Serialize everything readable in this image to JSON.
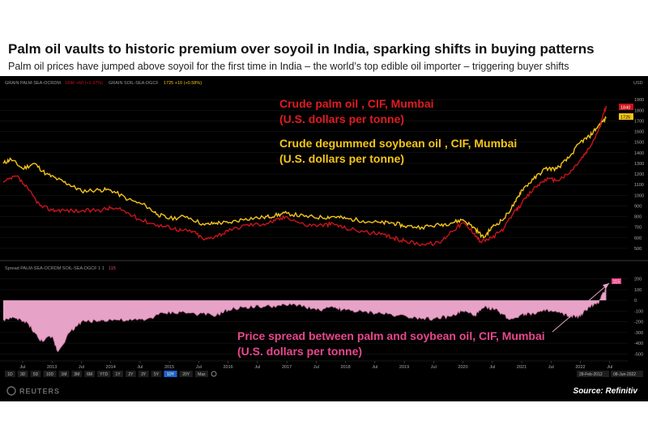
{
  "headline": "Palm oil vaults to historic premium over soyoil in India, sparking shifts in buying patterns",
  "subheadline": "Palm oil prices have jumped above soyoil for the first time in India – the world’s top edible oil importer – triggering buyer shifts",
  "panel_header": {
    "palm_ric": "GRAIN PALM-SEA-OCRDM",
    "palm_change": "1840 +60 (+1.37%)",
    "soy_ric": "GRAIN SOIL-SEA-DGCF",
    "soy_change": "1725 +10 (+0.58%)",
    "currency": "USD",
    "spread_ric": "Spread PALM-SEA-OCRDM SOIL-SEA-DGCF 1 1",
    "spread_value": "115"
  },
  "range_buttons": [
    "1D",
    "3D",
    "5D",
    "10D",
    "1M",
    "3M",
    "6M",
    "YTD",
    "1Y",
    "2Y",
    "3Y",
    "5Y",
    "10Y",
    "20Y",
    "Max"
  ],
  "active_range": "10Y",
  "date_range": {
    "start": "28-Feb-2012",
    "end": "08-Jun-2022"
  },
  "reuters_logo": "REUTERS",
  "source": "Source: Refinitiv",
  "colors": {
    "palm": "#c8141c",
    "soy": "#f5c518",
    "spread_fill": "#e7a3c7",
    "spread_text": "#e8478e",
    "background": "#000000"
  },
  "chart_data": [
    {
      "type": "line",
      "series": [
        {
          "name": "Crude palm oil , CIF, Mumbai",
          "x": [
            2012.17,
            2012.4,
            2012.6,
            2012.8,
            2013.0,
            2013.2,
            2013.5,
            2013.8,
            2014.0,
            2014.2,
            2014.5,
            2014.8,
            2015.0,
            2015.2,
            2015.4,
            2015.6,
            2015.8,
            2016.0,
            2016.3,
            2016.6,
            2016.8,
            2017.0,
            2017.3,
            2017.6,
            2017.8,
            2018.0,
            2018.3,
            2018.6,
            2018.8,
            2019.0,
            2019.3,
            2019.6,
            2019.8,
            2020.0,
            2020.2,
            2020.3,
            2020.5,
            2020.7,
            2020.9,
            2021.0,
            2021.2,
            2021.4,
            2021.6,
            2021.8,
            2022.0,
            2022.15,
            2022.3,
            2022.44
          ],
          "values": [
            1120,
            1180,
            1050,
            900,
            860,
            860,
            850,
            860,
            880,
            860,
            770,
            720,
            700,
            670,
            660,
            580,
            620,
            660,
            720,
            730,
            760,
            800,
            720,
            720,
            730,
            690,
            660,
            630,
            600,
            570,
            540,
            550,
            660,
            740,
            640,
            560,
            600,
            690,
            860,
            920,
            1060,
            1150,
            1140,
            1200,
            1330,
            1440,
            1600,
            1840
          ]
        },
        {
          "name": "Crude degummed soybean oil , CIF, Mumbai",
          "x": [
            2012.17,
            2012.3,
            2012.5,
            2012.7,
            2012.9,
            2013.1,
            2013.3,
            2013.5,
            2013.8,
            2014.0,
            2014.3,
            2014.6,
            2014.8,
            2015.0,
            2015.3,
            2015.6,
            2015.8,
            2016.0,
            2016.3,
            2016.6,
            2016.8,
            2017.0,
            2017.3,
            2017.6,
            2017.8,
            2018.0,
            2018.3,
            2018.6,
            2018.8,
            2019.0,
            2019.3,
            2019.6,
            2019.8,
            2020.0,
            2020.2,
            2020.35,
            2020.5,
            2020.7,
            2020.9,
            2021.0,
            2021.2,
            2021.4,
            2021.6,
            2021.8,
            2022.0,
            2022.15,
            2022.3,
            2022.44
          ],
          "values": [
            1300,
            1340,
            1250,
            1300,
            1200,
            1150,
            1100,
            1040,
            1050,
            1050,
            960,
            900,
            820,
            780,
            800,
            720,
            740,
            740,
            780,
            790,
            810,
            830,
            800,
            790,
            800,
            780,
            760,
            740,
            740,
            710,
            700,
            720,
            740,
            770,
            690,
            600,
            700,
            780,
            940,
            1050,
            1150,
            1250,
            1250,
            1350,
            1500,
            1550,
            1650,
            1725
          ]
        }
      ],
      "ylim": [
        400,
        2000
      ],
      "y_ticks": [
        500,
        600,
        700,
        800,
        900,
        1000,
        1100,
        1200,
        1300,
        1400,
        1500,
        1600,
        1700,
        1800,
        1900
      ],
      "x_ticks": [
        {
          "label": "Jul",
          "x": 2012.5
        },
        {
          "label": "2013",
          "x": 2013.0
        },
        {
          "label": "Jul",
          "x": 2013.5
        },
        {
          "label": "2014",
          "x": 2014.0
        },
        {
          "label": "Jul",
          "x": 2014.5
        },
        {
          "label": "2015",
          "x": 2015.0
        },
        {
          "label": "Jul",
          "x": 2015.5
        },
        {
          "label": "2016",
          "x": 2016.0
        },
        {
          "label": "Jul",
          "x": 2016.5
        },
        {
          "label": "2017",
          "x": 2017.0
        },
        {
          "label": "Jul",
          "x": 2017.5
        },
        {
          "label": "2018",
          "x": 2018.0
        },
        {
          "label": "Jul",
          "x": 2018.5
        },
        {
          "label": "2019",
          "x": 2019.0
        },
        {
          "label": "Jul",
          "x": 2019.5
        },
        {
          "label": "2020",
          "x": 2020.0
        },
        {
          "label": "Jul",
          "x": 2020.5
        },
        {
          "label": "2021",
          "x": 2021.0
        },
        {
          "label": "Jul",
          "x": 2021.5
        },
        {
          "label": "2022",
          "x": 2022.0
        },
        {
          "label": "Jul",
          "x": 2022.5
        }
      ],
      "xlim": [
        2012.17,
        2022.6
      ],
      "palm_annotation": [
        "Crude palm oil , CIF, Mumbai",
        "(U.S. dollars per tonne)"
      ],
      "soy_annotation": [
        "Crude degummed soybean oil , CIF, Mumbai",
        "(U.S. dollars per tonne)"
      ]
    },
    {
      "type": "area",
      "series": [
        {
          "name": "Spread PALM-SEA-OCRDM SOIL-SEA-DGCF 1 1",
          "x": [
            2012.17,
            2012.4,
            2012.6,
            2012.8,
            2013.0,
            2013.1,
            2013.3,
            2013.5,
            2013.8,
            2014.0,
            2014.3,
            2014.6,
            2014.9,
            2015.2,
            2015.5,
            2015.8,
            2016.0,
            2016.3,
            2016.6,
            2016.9,
            2017.2,
            2017.5,
            2017.8,
            2018.0,
            2018.3,
            2018.6,
            2018.9,
            2019.2,
            2019.5,
            2019.8,
            2020.0,
            2020.2,
            2020.4,
            2020.6,
            2020.8,
            2021.0,
            2021.2,
            2021.4,
            2021.6,
            2021.8,
            2022.0,
            2022.15,
            2022.3,
            2022.44
          ],
          "values": [
            -180,
            -170,
            -220,
            -380,
            -340,
            -480,
            -300,
            -200,
            -190,
            -180,
            -190,
            -180,
            -120,
            -110,
            -130,
            -140,
            -90,
            -60,
            -60,
            -50,
            -40,
            -90,
            -70,
            -90,
            -110,
            -120,
            -140,
            -160,
            -170,
            -150,
            -100,
            -140,
            -60,
            -100,
            -180,
            -130,
            -120,
            -100,
            -110,
            -150,
            -150,
            -60,
            -30,
            115
          ]
        }
      ],
      "ylim": [
        -550,
        250
      ],
      "y_ticks": [
        200,
        100,
        0,
        -100,
        -200,
        -300,
        -400,
        -500
      ],
      "annotation": [
        "Price spread between palm and soybean oil, CIF, Mumbai",
        "(U.S. dollars per tonne)"
      ]
    }
  ]
}
